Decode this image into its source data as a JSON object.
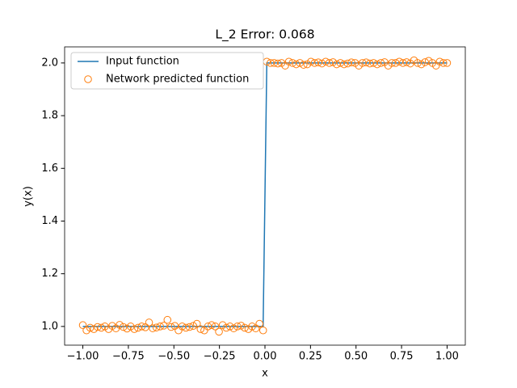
{
  "chart_data": {
    "type": "line_scatter",
    "title": "L_2 Error: 0.068",
    "x_label": "x",
    "y_label": "y(x)",
    "x": [
      -1.0,
      -0.9798,
      -0.9596,
      -0.9394,
      -0.9192,
      -0.899,
      -0.8788,
      -0.8586,
      -0.8384,
      -0.8182,
      -0.798,
      -0.7778,
      -0.7576,
      -0.7374,
      -0.7172,
      -0.697,
      -0.6768,
      -0.6566,
      -0.6364,
      -0.6162,
      -0.596,
      -0.5758,
      -0.5556,
      -0.5354,
      -0.5152,
      -0.4949,
      -0.4747,
      -0.4545,
      -0.4343,
      -0.4141,
      -0.3939,
      -0.3737,
      -0.3535,
      -0.3333,
      -0.3131,
      -0.2929,
      -0.2727,
      -0.2525,
      -0.2323,
      -0.2121,
      -0.1919,
      -0.1717,
      -0.1515,
      -0.1313,
      -0.1111,
      -0.0909,
      -0.0707,
      -0.0505,
      -0.0303,
      -0.0101,
      0.0101,
      0.0303,
      0.0505,
      0.0707,
      0.0909,
      0.1111,
      0.1313,
      0.1515,
      0.1717,
      0.1919,
      0.2121,
      0.2323,
      0.2525,
      0.2727,
      0.2929,
      0.3131,
      0.3333,
      0.3535,
      0.3737,
      0.3939,
      0.4141,
      0.4343,
      0.4545,
      0.4747,
      0.4949,
      0.5152,
      0.5354,
      0.5556,
      0.5758,
      0.596,
      0.6162,
      0.6364,
      0.6566,
      0.6768,
      0.697,
      0.7172,
      0.7374,
      0.7576,
      0.7778,
      0.798,
      0.8182,
      0.8384,
      0.8586,
      0.8788,
      0.899,
      0.9192,
      0.9394,
      0.9596,
      0.9798,
      1.0
    ],
    "series": [
      {
        "name": "Input function",
        "kind": "line",
        "color": "#1f77b4",
        "values": [
          1,
          1,
          1,
          1,
          1,
          1,
          1,
          1,
          1,
          1,
          1,
          1,
          1,
          1,
          1,
          1,
          1,
          1,
          1,
          1,
          1,
          1,
          1,
          1,
          1,
          1,
          1,
          1,
          1,
          1,
          1,
          1,
          1,
          1,
          1,
          1,
          1,
          1,
          1,
          1,
          1,
          1,
          1,
          1,
          1,
          1,
          1,
          1,
          1,
          1,
          2,
          2,
          2,
          2,
          2,
          2,
          2,
          2,
          2,
          2,
          2,
          2,
          2,
          2,
          2,
          2,
          2,
          2,
          2,
          2,
          2,
          2,
          2,
          2,
          2,
          2,
          2,
          2,
          2,
          2,
          2,
          2,
          2,
          2,
          2,
          2,
          2,
          2,
          2,
          2,
          2,
          2,
          2,
          2,
          2,
          2,
          2,
          2,
          2,
          2
        ]
      },
      {
        "name": "Network predicted function",
        "kind": "scatter",
        "color": "#ff7f0e",
        "values": [
          1.005,
          0.985,
          0.995,
          0.99,
          0.998,
          0.995,
          1.0,
          0.99,
          1.002,
          0.993,
          1.006,
          0.998,
          0.992,
          1.0,
          0.99,
          0.995,
          1.0,
          0.997,
          1.015,
          0.993,
          0.996,
          1.0,
          1.003,
          1.025,
          0.998,
          1.002,
          0.985,
          1.0,
          0.995,
          0.998,
          1.002,
          1.01,
          0.99,
          0.985,
          1.0,
          1.005,
          1.0,
          0.98,
          1.005,
          0.995,
          1.0,
          0.993,
          1.0,
          1.003,
          0.995,
          0.99,
          1.0,
          0.993,
          1.01,
          0.985,
          2.005,
          2.0,
          2.0,
          1.998,
          2.0,
          1.99,
          2.005,
          2.0,
          1.995,
          2.0,
          1.993,
          1.995,
          2.005,
          2.0,
          2.002,
          1.998,
          2.005,
          2.0,
          2.003,
          1.995,
          2.0,
          1.995,
          1.998,
          2.002,
          2.0,
          1.99,
          2.0,
          2.002,
          1.998,
          2.0,
          1.995,
          2.0,
          2.003,
          1.99,
          2.0,
          2.0,
          2.005,
          2.0,
          2.003,
          1.998,
          2.01,
          2.0,
          1.995,
          2.003,
          2.008,
          2.0,
          1.99,
          2.005,
          2.0,
          2.0
        ]
      }
    ],
    "xlim": [
      -1.1,
      1.1
    ],
    "xticks": [
      {
        "value": -1,
        "label": "−1.00"
      },
      {
        "value": -0.75,
        "label": "−0.75"
      },
      {
        "value": -0.5,
        "label": "−0.50"
      },
      {
        "value": -0.25,
        "label": "−0.25"
      },
      {
        "value": 0,
        "label": "0.00"
      },
      0.25,
      {
        "value": 0.5,
        "label": "0.50"
      },
      0.75,
      {
        "value": 1,
        "label": "1.00"
      }
    ],
    "ylim": [
      0.929,
      2.061
    ],
    "yticks": [
      {
        "value": 1,
        "label": "1.0"
      },
      1.2,
      1.4,
      1.6,
      1.8,
      {
        "value": 2,
        "label": "2.0"
      }
    ],
    "legend": "upper left"
  }
}
